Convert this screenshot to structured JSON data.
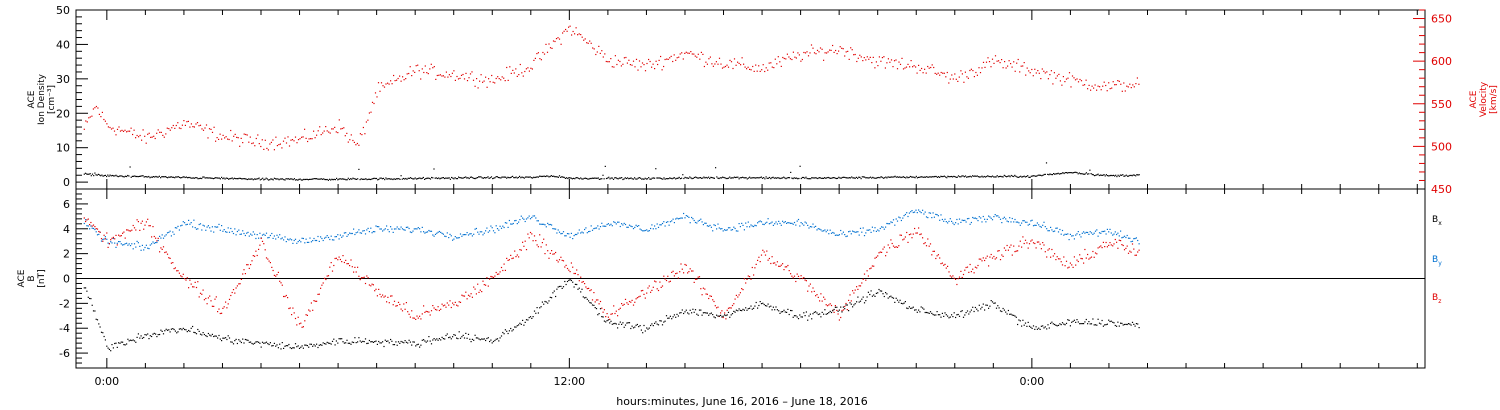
{
  "xlabel": "hours:minutes, June 16, 2016 – June 18, 2016",
  "x_ticks": [
    "0:00",
    "12:00",
    "0:00"
  ],
  "colors": {
    "axis": "#000000",
    "velocity": "#e00000",
    "bx": "#000000",
    "by": "#0070d0",
    "bz": "#e00000"
  },
  "chart_data": [
    {
      "type": "scatter",
      "panel": "top",
      "ylabel": [
        "ACE",
        "Ion Density",
        "[cm⁻³]"
      ],
      "ylim": [
        -2,
        50
      ],
      "yticks": [
        0,
        10,
        20,
        30,
        40,
        50
      ],
      "y2label": [
        "ACE",
        "Velocity",
        "[km/s]"
      ],
      "y2lim": [
        450,
        660
      ],
      "y2ticks": [
        450,
        500,
        550,
        600,
        650
      ],
      "x_hours_range": [
        -0.8,
        34.2
      ],
      "data_hours_range": [
        -0.6,
        26.8
      ],
      "series": [
        {
          "name": "Ion Density",
          "axis": "left",
          "color": "#000000",
          "x": [
            -0.6,
            0,
            2,
            4,
            6,
            8,
            10,
            11,
            11.5,
            12,
            14,
            16,
            18,
            20,
            22,
            24,
            24.5,
            25,
            26,
            26.8
          ],
          "values": [
            2.5,
            2.0,
            1.5,
            1.0,
            1.0,
            1.2,
            1.5,
            1.5,
            2.0,
            1.3,
            1.2,
            1.5,
            1.3,
            1.5,
            1.8,
            1.8,
            2.5,
            3.0,
            2.0,
            2.2
          ]
        },
        {
          "name": "Velocity",
          "axis": "right",
          "color": "#e00000",
          "x": [
            -0.6,
            -0.3,
            0,
            1,
            2,
            3,
            4,
            5,
            6,
            6.5,
            7,
            8,
            9,
            10,
            11,
            12,
            13,
            14,
            15,
            16,
            17,
            18,
            19,
            20,
            21,
            22,
            23,
            24,
            25,
            26,
            26.8
          ],
          "values": [
            520,
            548,
            525,
            510,
            528,
            512,
            505,
            508,
            525,
            500,
            565,
            590,
            585,
            578,
            595,
            640,
            602,
            595,
            610,
            598,
            592,
            608,
            615,
            600,
            595,
            580,
            600,
            590,
            578,
            570,
            575
          ]
        }
      ]
    },
    {
      "type": "scatter",
      "panel": "bottom",
      "ylabel": [
        "ACE",
        "B",
        "[nT]"
      ],
      "ylim": [
        -7.2,
        7.2
      ],
      "yticks": [
        -6,
        -4,
        -2,
        0,
        2,
        4,
        6
      ],
      "x_hours_range": [
        -0.8,
        34.2
      ],
      "data_hours_range": [
        -0.6,
        26.8
      ],
      "series": [
        {
          "name": "B",
          "sub": "x",
          "color": "#000000",
          "x": [
            -0.6,
            0,
            1,
            2,
            3,
            4,
            5,
            6,
            7,
            8,
            9,
            10,
            11,
            12,
            13,
            14,
            15,
            16,
            17,
            18,
            19,
            20,
            21,
            22,
            23,
            24,
            25,
            26,
            26.8
          ],
          "values": [
            -0.5,
            -5.5,
            -4.5,
            -4.0,
            -4.8,
            -5.2,
            -5.5,
            -5.0,
            -5.0,
            -5.2,
            -4.5,
            -5.0,
            -3.0,
            0.0,
            -3.5,
            -4.0,
            -2.5,
            -3.0,
            -2.0,
            -3.0,
            -2.5,
            -1.0,
            -2.5,
            -3.0,
            -2.0,
            -4.0,
            -3.5,
            -3.5,
            -3.8
          ]
        },
        {
          "name": "B",
          "sub": "y",
          "color": "#0070d0",
          "x": [
            -0.6,
            0,
            1,
            2,
            3,
            4,
            5,
            6,
            7,
            8,
            9,
            10,
            11,
            12,
            13,
            14,
            15,
            16,
            17,
            18,
            19,
            20,
            21,
            22,
            23,
            24,
            25,
            26,
            26.8
          ],
          "values": [
            4.5,
            3.0,
            2.5,
            4.5,
            4.0,
            3.5,
            3.0,
            3.5,
            4.0,
            4.0,
            3.5,
            4.0,
            5.0,
            3.5,
            4.5,
            4.0,
            5.0,
            4.0,
            4.5,
            4.5,
            3.5,
            4.0,
            5.5,
            4.5,
            5.0,
            4.5,
            3.5,
            3.8,
            3.0
          ]
        },
        {
          "name": "B",
          "sub": "z",
          "color": "#e00000",
          "x": [
            -0.6,
            0,
            1,
            2,
            3,
            4,
            5,
            6,
            7,
            8,
            9,
            10,
            11,
            12,
            13,
            14,
            15,
            16,
            17,
            18,
            19,
            20,
            21,
            22,
            23,
            24,
            25,
            26,
            26.8
          ],
          "values": [
            5.0,
            3.0,
            4.5,
            0.0,
            -2.5,
            3.0,
            -4.0,
            2.0,
            -1.0,
            -3.0,
            -2.0,
            0.0,
            3.5,
            1.0,
            -3.0,
            -1.0,
            1.0,
            -3.0,
            2.0,
            0.0,
            -3.0,
            2.0,
            4.0,
            0.0,
            2.0,
            3.0,
            1.0,
            3.0,
            2.0
          ]
        }
      ]
    }
  ]
}
